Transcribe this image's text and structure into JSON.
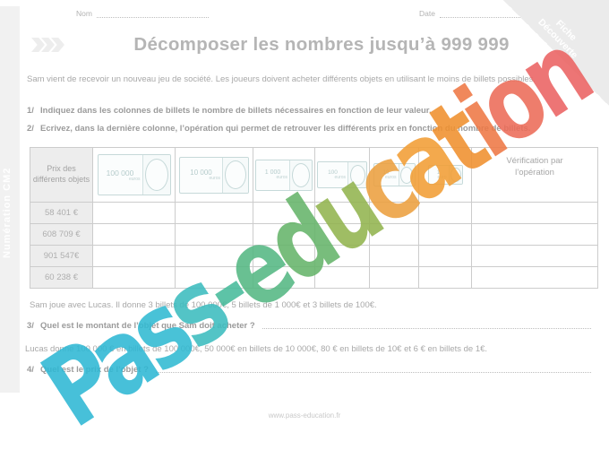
{
  "page": {
    "nom_label": "Nom",
    "date_label": "Date",
    "title": "Décomposer les nombres jusqu’à 999 999",
    "sidebar_label": "Numération CM2",
    "footer": "www.pass-education.fr"
  },
  "corner_badge": {
    "line1": "Fiche",
    "line2": "Découverte"
  },
  "intro": "Sam vient de recevoir un nouveau jeu de société. Les joueurs doivent acheter différents objets en utilisant le moins de billets possibles.",
  "instructions": [
    {
      "num": "1/",
      "text": "Indiquez dans les colonnes de billets le nombre de billets nécessaires en fonction de leur valeur."
    },
    {
      "num": "2/",
      "text": "Ecrivez, dans la dernière colonne, l’opération qui permet de retrouver les différents prix en fonction du nombre de billets."
    }
  ],
  "table": {
    "first_header": "Prix des différents objets",
    "last_header_line1": "Vérification par",
    "last_header_line2": "l’opération",
    "bills": [
      {
        "value": "100 000",
        "unit": "euros"
      },
      {
        "value": "10 000",
        "unit": "euros"
      },
      {
        "value": "1 000",
        "unit": "euros"
      },
      {
        "value": "100",
        "unit": "euros"
      },
      {
        "value": "10",
        "unit": "euros"
      },
      {
        "value": "1",
        "unit": "euro"
      }
    ],
    "rows": [
      "58 401 €",
      "608 709 €",
      "901 547€",
      "60 238 €"
    ]
  },
  "statements": {
    "sam": "Sam joue avec Lucas. Il donne 3 billets de 100 000€, 5 billets de 1 000€ et 3 billets de 100€.",
    "lucas": "Lucas donne 100 000 € en billets de 100 000€, 50 000€ en billets de 10 000€, 80 € en billets de 10€ et 6 € en billets de 1€."
  },
  "questions": {
    "q3_num": "3/",
    "q3_text": "Quel est le montant de l’objet que Sam doit acheter ?",
    "q4_num": "4/",
    "q4_text": "Quel est le prix de l’objet ?"
  },
  "watermark": {
    "text": "Pass-education",
    "letter_colors": [
      "#2eb8d4",
      "#2eb8d4",
      "#31bad2",
      "#3cbcbf",
      "#47bb9b",
      "#55b883",
      "#66b56b",
      "#92b44f",
      "#eca03f",
      "#f29e35",
      "#f0902e",
      "#ee7845",
      "#ec6c58",
      "#eb6362"
    ]
  },
  "colors": {
    "accent_cyan": "#2eb8d4",
    "accent_coral": "#eb6362",
    "strip_gray": "#f1f1f1",
    "table_border": "#cccccc",
    "bill_line": "#c6d9d9",
    "text_gray": "#a8a8a8"
  }
}
